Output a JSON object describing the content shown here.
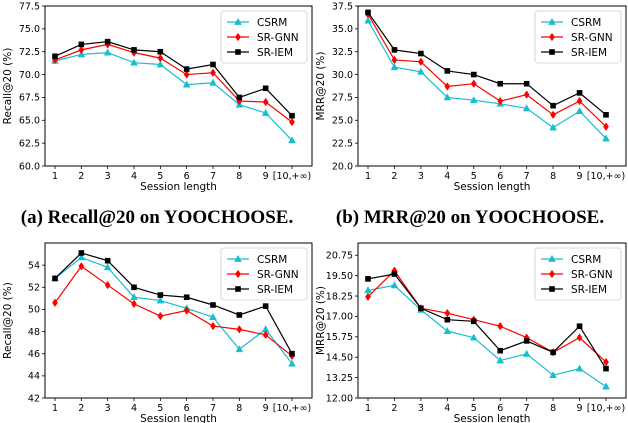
{
  "chart_data": [
    {
      "type": "line",
      "caption": "(a) Recall@20 on YOOCHOOSE.",
      "xlabel": "Session length",
      "ylabel": "Recall@20 (%)",
      "categories": [
        "1",
        "2",
        "3",
        "4",
        "5",
        "6",
        "7",
        "8",
        "9",
        "[10,+∞)"
      ],
      "ylim": [
        60.0,
        77.5
      ],
      "yticks": [
        "60.0",
        "62.5",
        "65.0",
        "67.5",
        "70.0",
        "72.5",
        "75.0",
        "77.5"
      ],
      "legend_position": "top-right",
      "grid": false,
      "series": [
        {
          "name": "CSRM",
          "color": "#17becf",
          "marker": "triangle",
          "values": [
            71.5,
            72.2,
            72.4,
            71.3,
            71.1,
            68.9,
            69.1,
            66.7,
            65.8,
            62.8
          ]
        },
        {
          "name": "SR-GNN",
          "color": "#ff0000",
          "marker": "diamond",
          "values": [
            71.6,
            72.7,
            73.3,
            72.4,
            71.8,
            70.0,
            70.2,
            67.1,
            67.0,
            64.8
          ]
        },
        {
          "name": "SR-IEM",
          "color": "#000000",
          "marker": "square",
          "values": [
            72.0,
            73.3,
            73.6,
            72.7,
            72.5,
            70.6,
            71.1,
            67.5,
            68.5,
            65.5
          ]
        }
      ]
    },
    {
      "type": "line",
      "caption": "(b) MRR@20 on YOOCHOOSE.",
      "xlabel": "Session length",
      "ylabel": "MRR@20 (%)",
      "categories": [
        "1",
        "2",
        "3",
        "4",
        "5",
        "6",
        "7",
        "8",
        "9",
        "[10,+∞)"
      ],
      "ylim": [
        20.0,
        37.5
      ],
      "yticks": [
        "20.0",
        "22.5",
        "25.0",
        "27.5",
        "30.0",
        "32.5",
        "35.0",
        "37.5"
      ],
      "legend_position": "top-right",
      "grid": false,
      "series": [
        {
          "name": "CSRM",
          "color": "#17becf",
          "marker": "triangle",
          "values": [
            35.9,
            30.8,
            30.3,
            27.5,
            27.2,
            26.8,
            26.3,
            24.2,
            26.0,
            23.0
          ]
        },
        {
          "name": "SR-GNN",
          "color": "#ff0000",
          "marker": "diamond",
          "values": [
            36.6,
            31.6,
            31.4,
            28.7,
            29.0,
            27.1,
            27.8,
            25.6,
            27.1,
            24.3
          ]
        },
        {
          "name": "SR-IEM",
          "color": "#000000",
          "marker": "square",
          "values": [
            36.8,
            32.7,
            32.3,
            30.4,
            30.0,
            29.0,
            29.0,
            26.6,
            28.0,
            25.6
          ]
        }
      ]
    },
    {
      "type": "line",
      "caption": "",
      "xlabel": "Session length",
      "ylabel": "Recall@20 (%)",
      "categories": [
        "1",
        "2",
        "3",
        "4",
        "5",
        "6",
        "7",
        "8",
        "9",
        "[10,+∞)"
      ],
      "ylim": [
        42,
        56
      ],
      "yticks": [
        "42",
        "44",
        "46",
        "48",
        "50",
        "52",
        "54"
      ],
      "legend_position": "top-right",
      "grid": false,
      "series": [
        {
          "name": "CSRM",
          "color": "#17becf",
          "marker": "triangle",
          "values": [
            52.8,
            54.7,
            53.8,
            51.1,
            50.8,
            50.1,
            49.3,
            46.4,
            48.2,
            45.1
          ]
        },
        {
          "name": "SR-GNN",
          "color": "#ff0000",
          "marker": "diamond",
          "values": [
            50.6,
            53.9,
            52.2,
            50.5,
            49.4,
            49.9,
            48.5,
            48.2,
            47.7,
            45.8
          ]
        },
        {
          "name": "SR-IEM",
          "color": "#000000",
          "marker": "square",
          "values": [
            52.8,
            55.1,
            54.4,
            52.0,
            51.3,
            51.1,
            50.4,
            49.5,
            50.3,
            46.0
          ]
        }
      ]
    },
    {
      "type": "line",
      "caption": "",
      "xlabel": "Session length",
      "ylabel": "MRR@20 (%)",
      "categories": [
        "1",
        "2",
        "3",
        "4",
        "5",
        "6",
        "7",
        "8",
        "9",
        "[10,+∞)"
      ],
      "ylim": [
        12.0,
        21.5
      ],
      "yticks": [
        "12.00",
        "13.25",
        "14.50",
        "15.75",
        "17.00",
        "18.25",
        "19.50",
        "20.75"
      ],
      "legend_position": "top-right",
      "grid": false,
      "series": [
        {
          "name": "CSRM",
          "color": "#17becf",
          "marker": "triangle",
          "values": [
            18.6,
            18.9,
            17.4,
            16.1,
            15.7,
            14.3,
            14.7,
            13.4,
            13.8,
            12.7
          ]
        },
        {
          "name": "SR-GNN",
          "color": "#ff0000",
          "marker": "diamond",
          "values": [
            18.2,
            19.8,
            17.5,
            17.2,
            16.8,
            16.4,
            15.7,
            14.8,
            15.7,
            14.2
          ]
        },
        {
          "name": "SR-IEM",
          "color": "#000000",
          "marker": "square",
          "values": [
            19.3,
            19.6,
            17.5,
            16.8,
            16.7,
            14.9,
            15.5,
            14.8,
            16.4,
            13.8
          ]
        }
      ]
    }
  ]
}
